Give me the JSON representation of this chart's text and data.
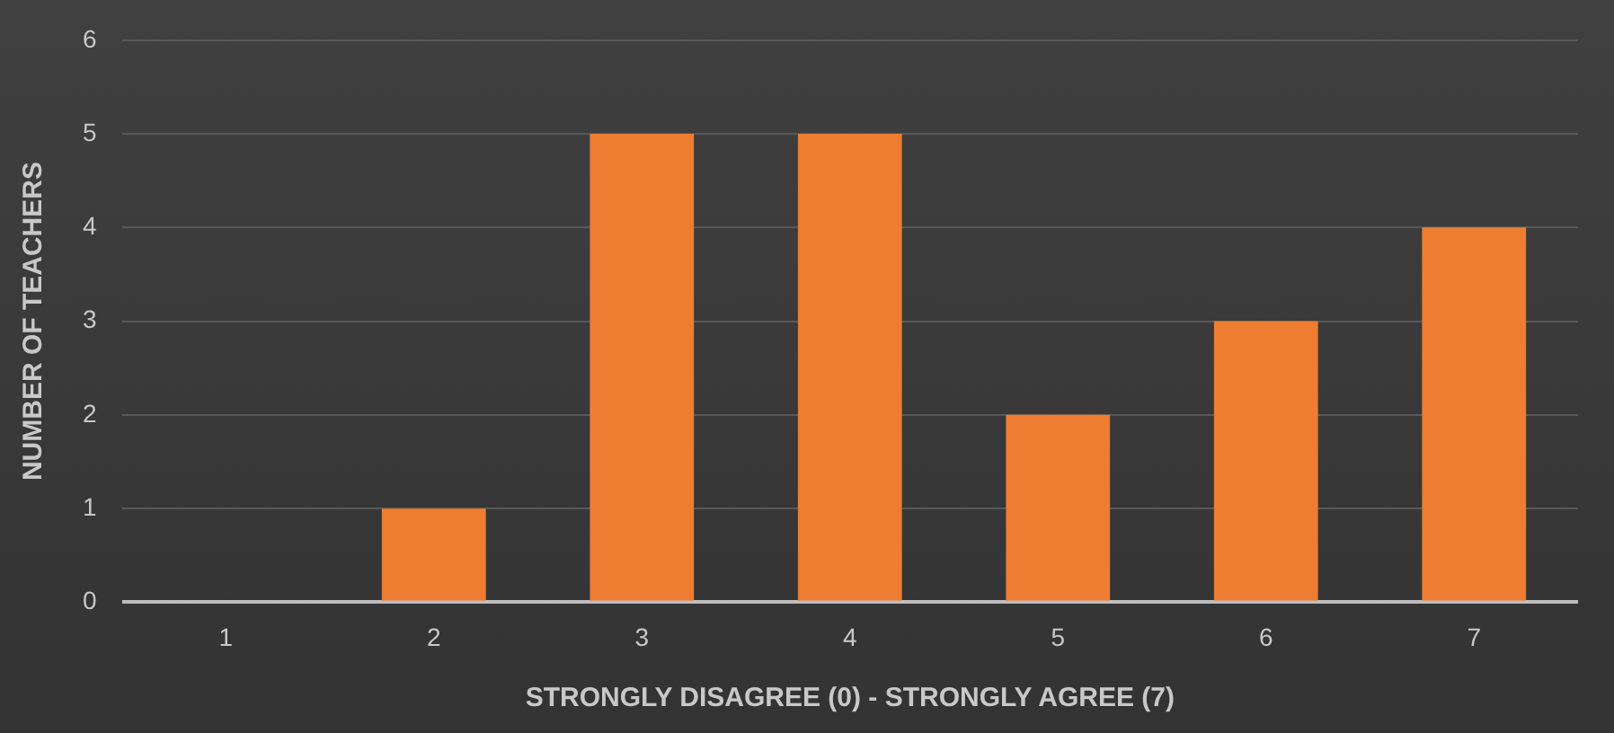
{
  "chart_data": {
    "type": "bar",
    "xlabel": "STRONGLY DISAGREE (0) - STRONGLY AGREE (7)",
    "ylabel": "NUMBER OF TEACHERS",
    "categories": [
      "1",
      "2",
      "3",
      "4",
      "5",
      "6",
      "7"
    ],
    "values": [
      0,
      1,
      5,
      5,
      2,
      3,
      4
    ],
    "color": "#ee7d32",
    "ylim": [
      0,
      6
    ],
    "yticks": [
      0,
      1,
      2,
      3,
      4,
      5,
      6
    ],
    "grid": "y",
    "legend": false
  }
}
